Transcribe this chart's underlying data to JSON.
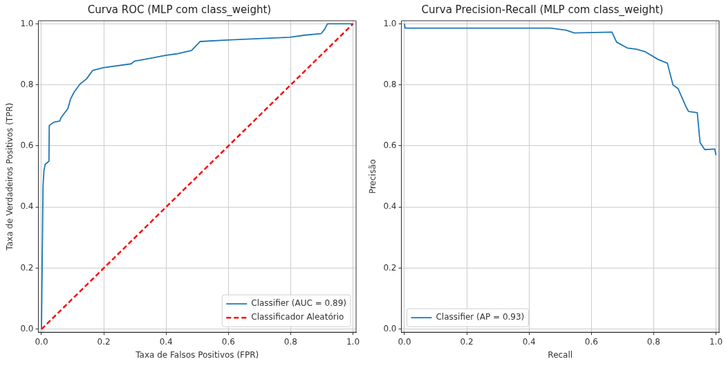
{
  "chart_data": [
    {
      "type": "line",
      "title": "Curva ROC (MLP com class_weight)",
      "xlabel": "Taxa de Falsos Positivos (FPR)",
      "ylabel": "Taxa de Verdadeiros Positivos (TPR)",
      "xlim": [
        -0.01,
        1.01
      ],
      "ylim": [
        -0.01,
        1.01
      ],
      "xticks": [
        {
          "value": 0,
          "label": "0.0"
        },
        {
          "value": 0.2,
          "label": "0.2"
        },
        {
          "value": 0.4,
          "label": "0.4"
        },
        {
          "value": 0.6,
          "label": "0.6"
        },
        {
          "value": 0.8,
          "label": "0.8"
        },
        {
          "value": 1,
          "label": "1.0"
        }
      ],
      "yticks": [
        {
          "value": 0,
          "label": "0.0"
        },
        {
          "value": 0.2,
          "label": "0.2"
        },
        {
          "value": 0.4,
          "label": "0.4"
        },
        {
          "value": 0.6,
          "label": "0.6"
        },
        {
          "value": 0.8,
          "label": "0.8"
        },
        {
          "value": 1,
          "label": "1.0"
        }
      ],
      "grid": true,
      "legend": "bottom right",
      "marker": "none",
      "series": [
        {
          "name": "Classifier (AUC = 0.89)",
          "color": "#1f77b4",
          "line_style": "solid",
          "x": [
            0,
            0.005,
            0.008,
            0.012,
            0.024,
            0.025,
            0.04,
            0.059,
            0.063,
            0.085,
            0.093,
            0.104,
            0.123,
            0.145,
            0.164,
            0.198,
            0.288,
            0.299,
            0.348,
            0.4,
            0.437,
            0.482,
            0.509,
            0.595,
            0.797,
            0.846,
            0.898,
            0.909,
            0.918,
            1
          ],
          "values": [
            0,
            0.47,
            0.52,
            0.54,
            0.55,
            0.667,
            0.678,
            0.682,
            0.693,
            0.723,
            0.753,
            0.775,
            0.802,
            0.82,
            0.847,
            0.856,
            0.869,
            0.878,
            0.887,
            0.897,
            0.902,
            0.913,
            0.942,
            0.947,
            0.956,
            0.963,
            0.968,
            0.982,
            1,
            1
          ]
        },
        {
          "name": "Classificador Aleatório",
          "color": "#ff0000",
          "line_style": "dashed",
          "x": [
            0,
            1
          ],
          "values": [
            0,
            1
          ]
        }
      ]
    },
    {
      "type": "line",
      "title": "Curva Precision-Recall (MLP com class_weight)",
      "xlabel": "Recall",
      "ylabel": "Precisão",
      "xlim": [
        -0.01,
        1.01
      ],
      "ylim": [
        -0.01,
        1.01
      ],
      "xticks": [
        {
          "value": 0,
          "label": "0.0"
        },
        {
          "value": 0.2,
          "label": "0.2"
        },
        {
          "value": 0.4,
          "label": "0.4"
        },
        {
          "value": 0.6,
          "label": "0.6"
        },
        {
          "value": 0.8,
          "label": "0.8"
        },
        {
          "value": 1,
          "label": "1.0"
        }
      ],
      "yticks": [
        {
          "value": 0,
          "label": "0.0"
        },
        {
          "value": 0.2,
          "label": "0.2"
        },
        {
          "value": 0.4,
          "label": "0.4"
        },
        {
          "value": 0.6,
          "label": "0.6"
        },
        {
          "value": 0.8,
          "label": "0.8"
        },
        {
          "value": 1,
          "label": "1.0"
        }
      ],
      "grid": true,
      "legend": "bottom left",
      "marker": "none",
      "series": [
        {
          "name": "Classifier (AP = 0.93)",
          "color": "#1f77b4",
          "line_style": "solid",
          "x": [
            0,
            0.002,
            0.469,
            0.519,
            0.545,
            0.666,
            0.681,
            0.715,
            0.745,
            0.772,
            0.813,
            0.844,
            0.862,
            0.878,
            0.904,
            0.912,
            0.94,
            0.949,
            0.964,
            0.996,
            1
          ],
          "values": [
            1,
            0.986,
            0.986,
            0.979,
            0.97,
            0.973,
            0.94,
            0.921,
            0.917,
            0.909,
            0.884,
            0.871,
            0.8,
            0.788,
            0.728,
            0.713,
            0.709,
            0.611,
            0.588,
            0.59,
            0.57
          ]
        }
      ]
    }
  ]
}
